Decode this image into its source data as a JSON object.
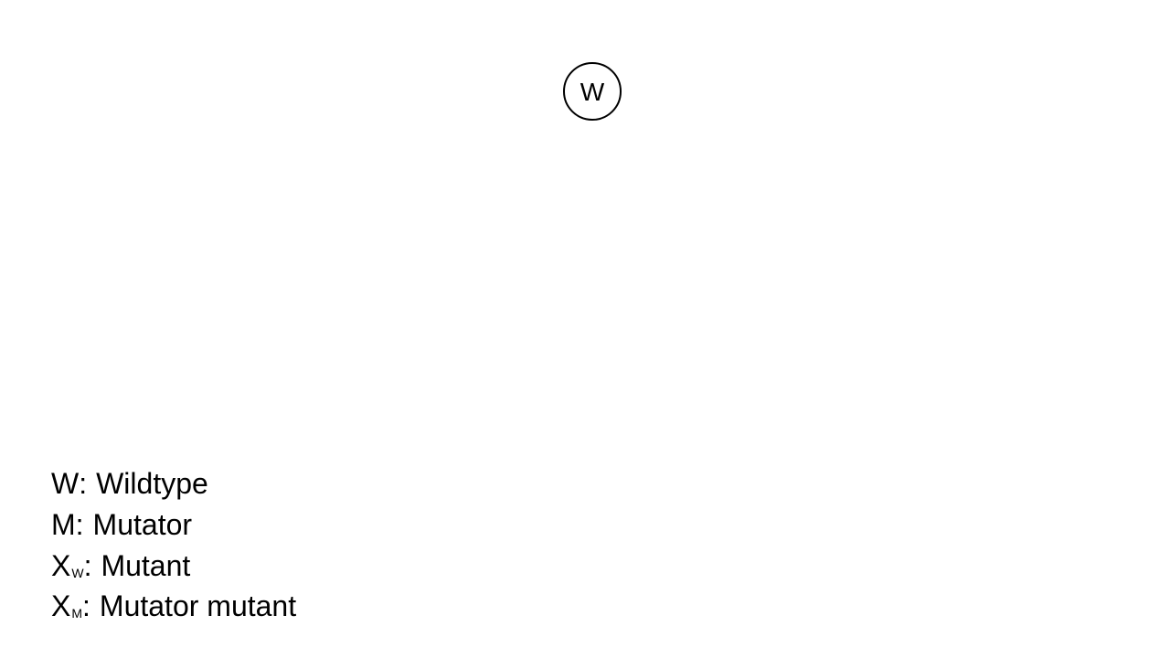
{
  "diagram": {
    "root_node": {
      "label": "W"
    }
  },
  "legend": {
    "items": [
      {
        "symbol": "W",
        "subscript": "",
        "separator": ":",
        "description": "Wildtype"
      },
      {
        "symbol": "M",
        "subscript": "",
        "separator": ":",
        "description": "Mutator"
      },
      {
        "symbol": "X",
        "subscript": "W",
        "separator": ":",
        "description": "Mutant"
      },
      {
        "symbol": "X",
        "subscript": "M",
        "separator": ":",
        "description": "Mutator mutant"
      }
    ]
  }
}
